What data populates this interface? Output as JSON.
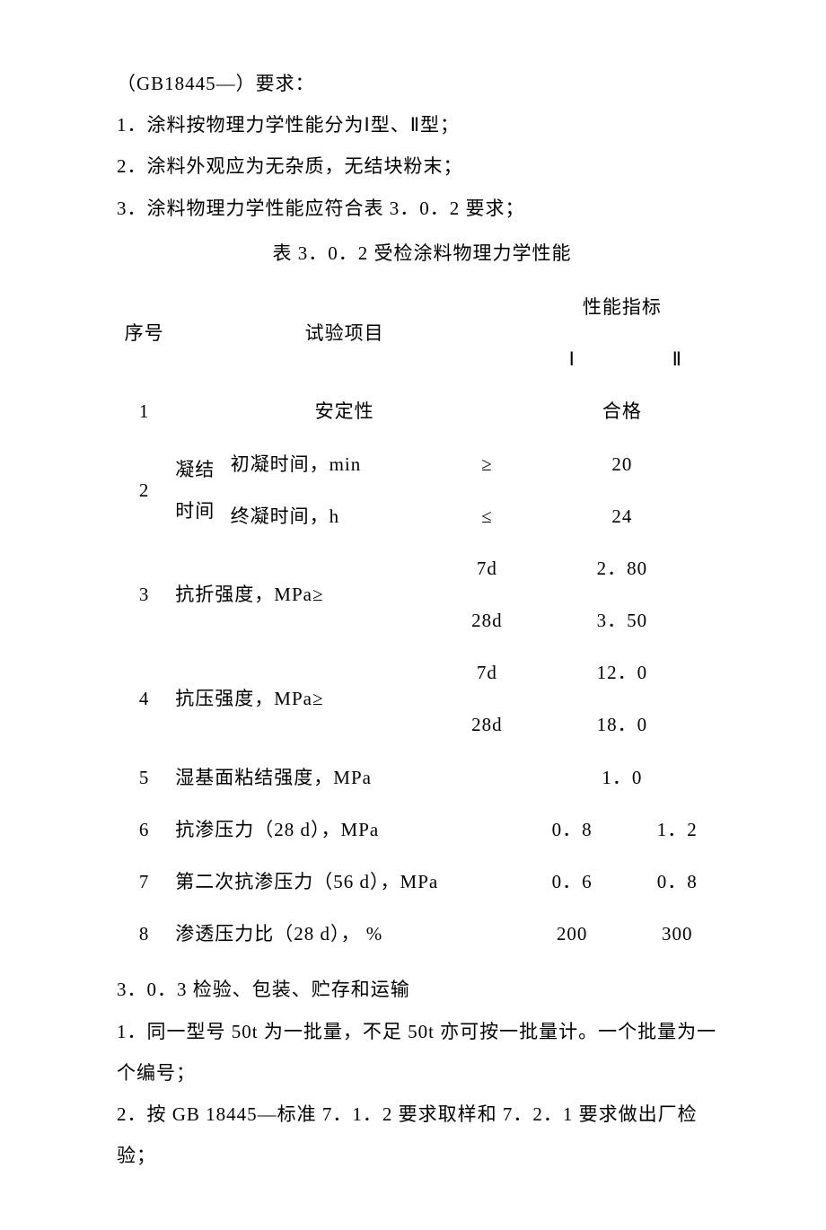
{
  "header": {
    "line0": "（GB18445—）要求：",
    "line1": "1．涂料按物理力学性能分为Ⅰ型、Ⅱ型；",
    "line2": "2．涂料外观应为无杂质，无结块粉末；",
    "line3": "3．涂料物理力学性能应符合表 3．0．2 要求；"
  },
  "table": {
    "title": "表 3．0．2 受检涂料物理力学性能",
    "head": {
      "seq": "序号",
      "item": "试验项目",
      "perf": "性能指标",
      "perf_i": "Ⅰ",
      "perf_ii": "Ⅱ"
    },
    "rows": {
      "r1": {
        "seq": "1",
        "item": "安定性",
        "val": "合格"
      },
      "r2a": {
        "seq": "2",
        "group": "凝结时间",
        "sub_a": "初凝时间，min",
        "cond_a": "≥",
        "val_a": "20"
      },
      "r2b": {
        "sub_b": "终凝时间，h",
        "cond_b": "≤",
        "val_b": "24"
      },
      "r3": {
        "seq": "3",
        "item": "抗折强度，MPa≥",
        "cond_a": "7d",
        "val_a": "2．80",
        "cond_b": "28d",
        "val_b": "3．50"
      },
      "r4": {
        "seq": "4",
        "item": "抗压强度，MPa≥",
        "cond_a": "7d",
        "val_a": "12．0",
        "cond_b": "28d",
        "val_b": "18．0"
      },
      "r5": {
        "seq": "5",
        "item": "湿基面粘结强度，MPa",
        "val": "1．0"
      },
      "r6": {
        "seq": "6",
        "item": "抗渗压力（28 d），MPa",
        "val_i": "0．8",
        "val_ii": "1．2"
      },
      "r7": {
        "seq": "7",
        "item": "第二次抗渗压力（56 d），MPa",
        "val_i": "0．6",
        "val_ii": "0．8"
      },
      "r8": {
        "seq": "8",
        "item": "渗透压力比（28 d），  %",
        "val_i": "200",
        "val_ii": "300"
      }
    }
  },
  "footer": {
    "sec": "3．0．3 检验、包装、贮存和运输",
    "p1": "1．同一型号 50t 为一批量，不足 50t 亦可按一批量计。一个批量为一个编号；",
    "p2": "2．按 GB 18445—标准 7．1．2 要求取样和 7．2．1 要求做出厂检验；"
  }
}
